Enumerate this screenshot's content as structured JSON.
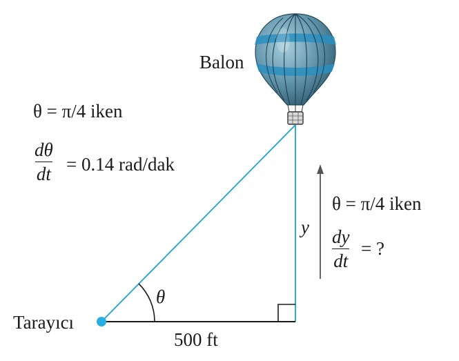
{
  "balloon_label": "Balon",
  "tracker_label": "Tarayıcı",
  "base_label": "500 ft",
  "angle_symbol": "θ",
  "side_symbol": "y",
  "left_condition": {
    "angle_eq": "θ = π/4 iken",
    "rate_num": "dθ",
    "rate_den": "dt",
    "rate_value": "= 0.14  rad/dak"
  },
  "right_condition": {
    "angle_eq": "θ = π/4 iken",
    "rate_num": "dy",
    "rate_den": "dt",
    "rate_value": "= ?"
  },
  "colors": {
    "line": "#1fa3cc",
    "point": "#29aee3",
    "balloon_dark": "#2f5f78",
    "balloon_light": "#7fb2c6",
    "balloon_band": "#2a8fc0"
  }
}
